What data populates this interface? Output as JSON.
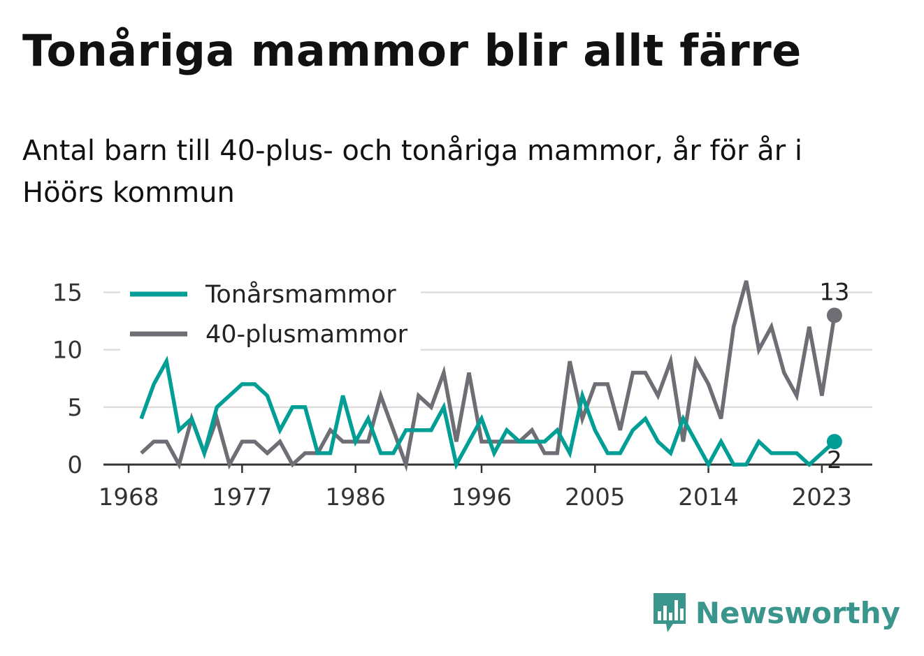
{
  "header": {
    "title": "Tonåriga mammor blir allt färre",
    "subtitle": "Antal barn till 40-plus- och tonåriga mammor, år för år i Höörs kommun"
  },
  "brand": {
    "name": "Newsworthy",
    "icon": "bar-chart-speech-bubble-icon",
    "color": "#3a958c"
  },
  "chart_data": {
    "type": "line",
    "title": "",
    "xlabel": "",
    "ylabel": "",
    "xlim": [
      1966,
      2027
    ],
    "ylim": [
      0,
      16
    ],
    "yticks": [
      0,
      5,
      10,
      15
    ],
    "xticks": [
      1968,
      1977,
      1986,
      1996,
      2005,
      2014,
      2023
    ],
    "grid": true,
    "legend_position": "top-left",
    "x": [
      1969,
      1970,
      1971,
      1972,
      1973,
      1974,
      1975,
      1976,
      1977,
      1978,
      1979,
      1980,
      1981,
      1982,
      1983,
      1984,
      1985,
      1986,
      1987,
      1988,
      1989,
      1990,
      1991,
      1992,
      1993,
      1994,
      1995,
      1996,
      1997,
      1998,
      1999,
      2000,
      2001,
      2002,
      2003,
      2004,
      2005,
      2006,
      2007,
      2008,
      2009,
      2010,
      2011,
      2012,
      2013,
      2014,
      2015,
      2016,
      2017,
      2018,
      2019,
      2020,
      2021,
      2022,
      2023,
      2024
    ],
    "series": [
      {
        "name": "Tonårsmammor",
        "color": "#009e94",
        "values": [
          4,
          7,
          9,
          3,
          4,
          1,
          5,
          6,
          7,
          7,
          6,
          3,
          5,
          5,
          1,
          1,
          6,
          2,
          4,
          1,
          1,
          3,
          3,
          3,
          5,
          0,
          2,
          4,
          1,
          3,
          2,
          2,
          2,
          3,
          1,
          6,
          3,
          1,
          1,
          3,
          4,
          2,
          1,
          4,
          2,
          0,
          2,
          0,
          0,
          2,
          1,
          1,
          1,
          0,
          1,
          2
        ],
        "end_label": "2"
      },
      {
        "name": "40-plusmammor",
        "color": "#6e6e74",
        "values": [
          1,
          2,
          2,
          0,
          4,
          1,
          4,
          0,
          2,
          2,
          1,
          2,
          0,
          1,
          1,
          3,
          2,
          2,
          2,
          6,
          3,
          0,
          6,
          5,
          8,
          2,
          8,
          2,
          2,
          2,
          2,
          3,
          1,
          1,
          9,
          4,
          7,
          7,
          3,
          8,
          8,
          6,
          9,
          2,
          9,
          7,
          4,
          12,
          16,
          10,
          12,
          8,
          6,
          12,
          6,
          13
        ],
        "end_label": "13"
      }
    ]
  }
}
